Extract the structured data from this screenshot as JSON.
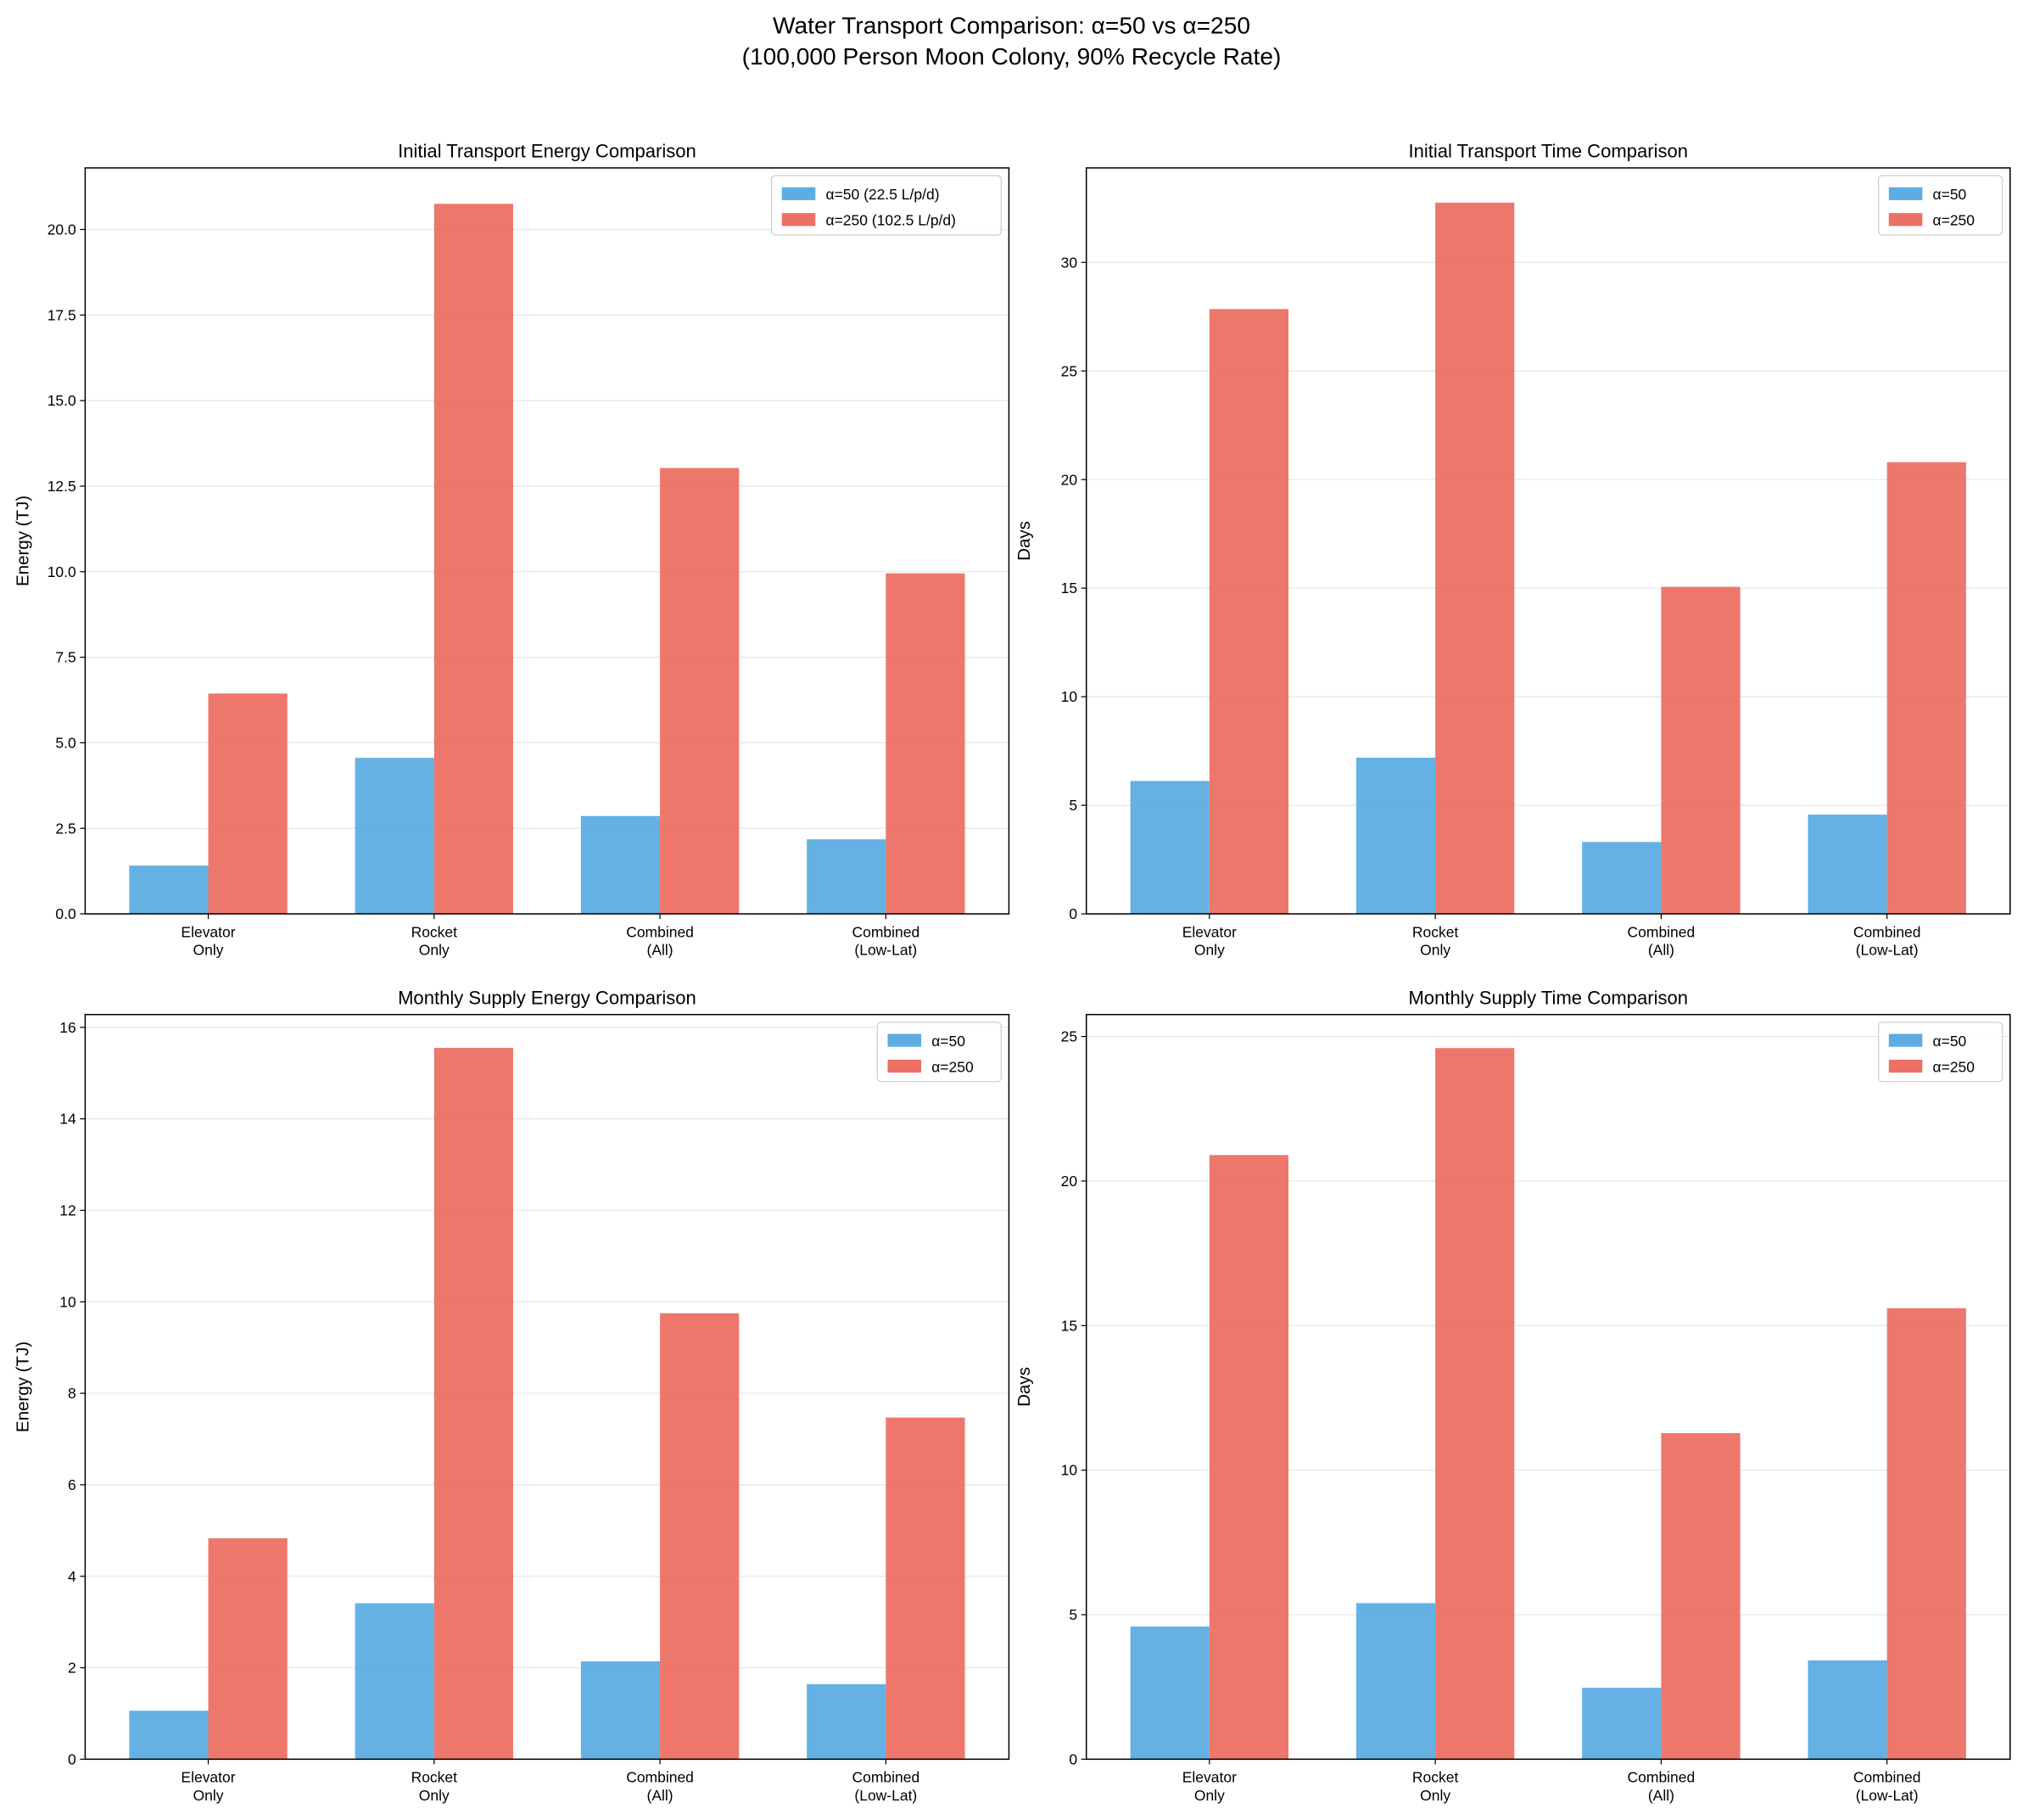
{
  "suptitle": [
    "Water Transport Comparison: α=50 vs α=250",
    "(100,000 Person Moon Colony, 90% Recycle Rate)"
  ],
  "colors": {
    "alpha50": "#5DADE2",
    "alpha250": "#EC7063"
  },
  "chart_data": [
    {
      "type": "bar",
      "title": "Initial Transport Energy Comparison",
      "xlabel": "",
      "ylabel": "Energy (TJ)",
      "categories": [
        "Elevator\nOnly",
        "Rocket\nOnly",
        "Combined\n(All)",
        "Combined\n(Low-Lat)"
      ],
      "series": [
        {
          "name": "α=50 (22.5 L/p/d)",
          "values": [
            1.41,
            4.56,
            2.86,
            2.18
          ]
        },
        {
          "name": "α=250 (102.5 L/p/d)",
          "values": [
            6.44,
            20.75,
            13.03,
            9.95
          ]
        }
      ],
      "ylim": [
        0,
        21.8
      ],
      "yticks": [
        0,
        2.5,
        5,
        7.5,
        10,
        12.5,
        15,
        17.5,
        20
      ],
      "ytick_labels": [
        "0.0",
        "2.5",
        "5.0",
        "7.5",
        "10.0",
        "12.5",
        "15.0",
        "17.5",
        "20.0"
      ],
      "grid": "y",
      "legend": "top-right"
    },
    {
      "type": "bar",
      "title": "Initial Transport Time Comparison",
      "xlabel": "",
      "ylabel": "Days",
      "categories": [
        "Elevator\nOnly",
        "Rocket\nOnly",
        "Combined\n(All)",
        "Combined\n(Low-Lat)"
      ],
      "series": [
        {
          "name": "α=50",
          "values": [
            6.12,
            7.19,
            3.31,
            4.57
          ]
        },
        {
          "name": "α=250",
          "values": [
            27.85,
            32.75,
            15.06,
            20.8
          ]
        }
      ],
      "ylim": [
        0,
        34.35
      ],
      "yticks": [
        0,
        5,
        10,
        15,
        20,
        25,
        30
      ],
      "ytick_labels": [
        "0",
        "5",
        "10",
        "15",
        "20",
        "25",
        "30"
      ],
      "grid": "y",
      "legend": "top-right"
    },
    {
      "type": "bar",
      "title": "Monthly Supply Energy Comparison",
      "xlabel": "",
      "ylabel": "Energy (TJ)",
      "categories": [
        "Elevator\nOnly",
        "Rocket\nOnly",
        "Combined\n(All)",
        "Combined\n(Low-Lat)"
      ],
      "series": [
        {
          "name": "α=50",
          "values": [
            1.06,
            3.41,
            2.14,
            1.64
          ]
        },
        {
          "name": "α=250",
          "values": [
            4.83,
            15.55,
            9.75,
            7.47
          ]
        }
      ],
      "ylim": [
        0,
        16.28
      ],
      "yticks": [
        0,
        2,
        4,
        6,
        8,
        10,
        12,
        14,
        16
      ],
      "ytick_labels": [
        "0",
        "2",
        "4",
        "6",
        "8",
        "10",
        "12",
        "14",
        "16"
      ],
      "grid": "y",
      "legend": "top-right"
    },
    {
      "type": "bar",
      "title": "Monthly Supply Time Comparison",
      "xlabel": "",
      "ylabel": "Days",
      "categories": [
        "Elevator\nOnly",
        "Rocket\nOnly",
        "Combined\n(All)",
        "Combined\n(Low-Lat)"
      ],
      "series": [
        {
          "name": "α=50",
          "values": [
            4.59,
            5.4,
            2.47,
            3.42
          ]
        },
        {
          "name": "α=250",
          "values": [
            20.9,
            24.6,
            11.28,
            15.6
          ]
        }
      ],
      "ylim": [
        0,
        25.76
      ],
      "yticks": [
        0,
        5,
        10,
        15,
        20,
        25
      ],
      "ytick_labels": [
        "0",
        "5",
        "10",
        "15",
        "20",
        "25"
      ],
      "grid": "y",
      "legend": "top-right"
    }
  ]
}
